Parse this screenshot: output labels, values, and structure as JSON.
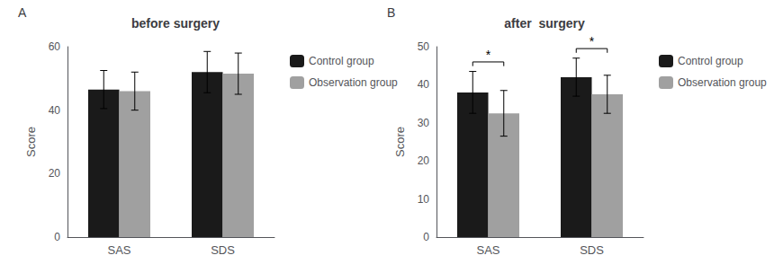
{
  "chart_data": [
    {
      "type": "bar",
      "title": "before surgery",
      "panel_label": "A",
      "categories": [
        "SAS",
        "SDS"
      ],
      "series": [
        {
          "name": "Control group",
          "color": "#1a1a1a",
          "values": [
            46.5,
            52.0
          ],
          "errors": [
            6.0,
            6.5
          ]
        },
        {
          "name": "Observation group",
          "color": "#a0a0a0",
          "values": [
            46.0,
            51.5
          ],
          "errors": [
            6.0,
            6.5
          ]
        }
      ],
      "ylabel": "Score",
      "ylim": [
        0,
        60
      ],
      "yticks": [
        0,
        20,
        40,
        60
      ],
      "grid": false,
      "legend": "right"
    },
    {
      "type": "bar",
      "title": "after  surgery",
      "panel_label": "B",
      "categories": [
        "SAS",
        "SDS"
      ],
      "series": [
        {
          "name": "Control group",
          "color": "#1a1a1a",
          "values": [
            38.0,
            42.0
          ],
          "errors": [
            5.5,
            5.0
          ]
        },
        {
          "name": "Observation group",
          "color": "#a0a0a0",
          "values": [
            32.5,
            37.5
          ],
          "errors": [
            6.0,
            5.0
          ]
        }
      ],
      "ylabel": "Score",
      "ylim": [
        0,
        50
      ],
      "yticks": [
        0,
        10,
        20,
        30,
        40,
        50
      ],
      "grid": false,
      "legend": "right",
      "annotations": [
        {
          "category": "SAS",
          "text": "*"
        },
        {
          "category": "SDS",
          "text": "*"
        }
      ]
    }
  ]
}
